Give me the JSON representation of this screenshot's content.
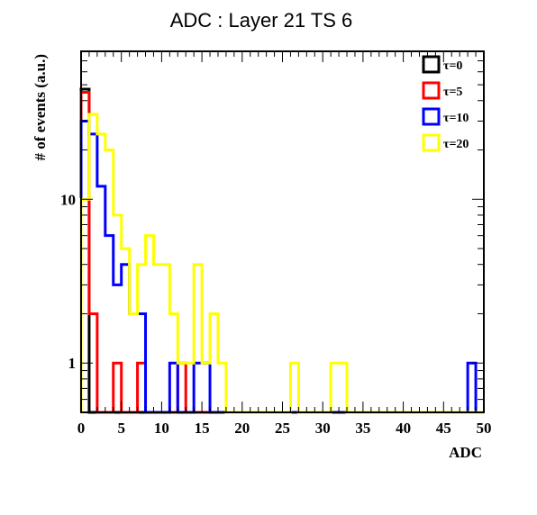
{
  "chart_data": {
    "type": "line",
    "drawstyle": "steps-histogram",
    "title": "ADC : Layer 21 TS 6",
    "xlabel": "ADC",
    "ylabel": "# of events (a.u.)",
    "xlim": [
      0,
      50
    ],
    "ylim": [
      0.5,
      80
    ],
    "yscale": "log",
    "grid": false,
    "legend_position": "top-right",
    "xticks": [
      "0",
      "5",
      "10",
      "15",
      "20",
      "25",
      "30",
      "35",
      "40",
      "45",
      "50"
    ],
    "yticks": [
      "1",
      "10"
    ],
    "bin_edges": [
      0,
      1,
      2,
      3,
      4,
      5,
      6,
      7,
      8,
      9,
      10,
      11,
      12,
      13,
      14,
      15,
      16,
      17,
      18,
      19,
      20,
      21,
      22,
      23,
      24,
      25,
      26,
      27,
      28,
      29,
      30,
      31,
      32,
      33,
      34,
      35,
      36,
      37,
      38,
      39,
      40,
      41,
      42,
      43,
      44,
      45,
      46,
      47,
      48,
      49,
      50
    ],
    "series": [
      {
        "name": "τ=0",
        "color": "#000000",
        "values": [
          47,
          0,
          0,
          0,
          0,
          0,
          0,
          0,
          0,
          0,
          0,
          0,
          0,
          0,
          0,
          0,
          0,
          0,
          0,
          0,
          0,
          0,
          0,
          0,
          0,
          0,
          0,
          0,
          0,
          0,
          0,
          0,
          0,
          0,
          0,
          0,
          0,
          0,
          0,
          0,
          0,
          0,
          0,
          0,
          0,
          0,
          0,
          0,
          0,
          0
        ]
      },
      {
        "name": "τ=5",
        "color": "#ff0000",
        "values": [
          45,
          2,
          0,
          0,
          1,
          0,
          0,
          1,
          0,
          0,
          0,
          0,
          1,
          0,
          0,
          0,
          0,
          0,
          0,
          0,
          0,
          0,
          0,
          0,
          0,
          0,
          0,
          0,
          0,
          0,
          0,
          0,
          0,
          0,
          0,
          0,
          0,
          0,
          0,
          0,
          0,
          0,
          0,
          0,
          0,
          0,
          0,
          0,
          0,
          0
        ]
      },
      {
        "name": "τ=10",
        "color": "#0000ff",
        "values": [
          30,
          25,
          12,
          6,
          3,
          4,
          2,
          2,
          0,
          0,
          0,
          1,
          0,
          0,
          1,
          1,
          0,
          0,
          0,
          0,
          0,
          0,
          0,
          0,
          0,
          0,
          0,
          0,
          0,
          0,
          0,
          0,
          0,
          0,
          0,
          0,
          0,
          0,
          0,
          0,
          0,
          0,
          0,
          0,
          0,
          0,
          0,
          0,
          1,
          0
        ]
      },
      {
        "name": "τ=20",
        "color": "#ffff00",
        "values": [
          10,
          33,
          25,
          20,
          8,
          5,
          2,
          4,
          6,
          4,
          4,
          2,
          1,
          1,
          4,
          1,
          2,
          1,
          0,
          0,
          0,
          0,
          0,
          0,
          0,
          0,
          1,
          0,
          0,
          0,
          0,
          1,
          1,
          0,
          0,
          0,
          0,
          0,
          0,
          0,
          0,
          0,
          0,
          0,
          0,
          0,
          0,
          0,
          0,
          0
        ]
      }
    ]
  }
}
